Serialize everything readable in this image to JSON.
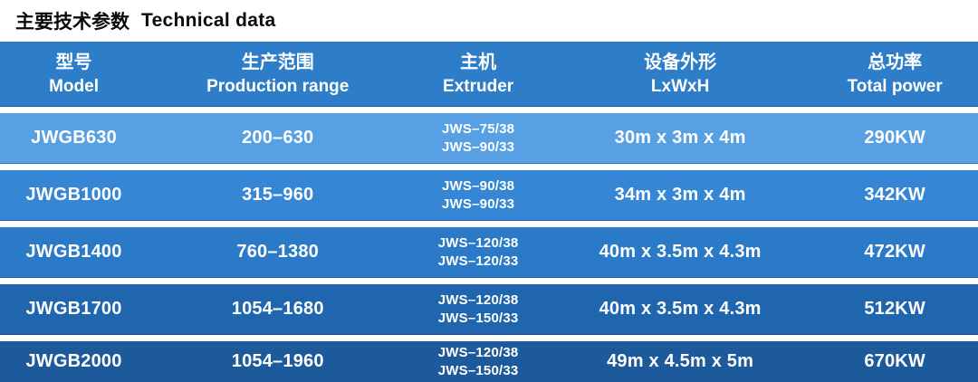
{
  "page": {
    "title_cn": "主要技术参数",
    "title_en": "Technical data"
  },
  "colors": {
    "header_bg": "#2e7dc9",
    "title_text": "#0a0a0a",
    "cell_text": "#ffffff",
    "page_bg": "#ffffff"
  },
  "table": {
    "columns": [
      {
        "cn": "型号",
        "en": "Model"
      },
      {
        "cn": "生产范围",
        "en": "Production range"
      },
      {
        "cn": "主机",
        "en": "Extruder"
      },
      {
        "cn": "设备外形",
        "en": "LxWxH"
      },
      {
        "cn": "总功率",
        "en": "Total power"
      }
    ],
    "rows": [
      {
        "model": "JWGB630",
        "production_range": "200–630",
        "extruder_line1": "JWS–75/38",
        "extruder_line2": "JWS–90/33",
        "dimensions": "30m x 3m x 4m",
        "total_power": "290KW",
        "row_color": "#57a0e3"
      },
      {
        "model": "JWGB1000",
        "production_range": "315–960",
        "extruder_line1": "JWS–90/38",
        "extruder_line2": "JWS–90/33",
        "dimensions": "34m x 3m x 4m",
        "total_power": "342KW",
        "row_color": "#3586d4"
      },
      {
        "model": "JWGB1400",
        "production_range": "760–1380",
        "extruder_line1": "JWS–120/38",
        "extruder_line2": "JWS–120/33",
        "dimensions": "40m x 3.5m x 4.3m",
        "total_power": "472KW",
        "row_color": "#2a7ac7"
      },
      {
        "model": "JWGB1700",
        "production_range": "1054–1680",
        "extruder_line1": "JWS–120/38",
        "extruder_line2": "JWS–150/33",
        "dimensions": "40m x 3.5m x 4.3m",
        "total_power": "512KW",
        "row_color": "#2066ae"
      },
      {
        "model": "JWGB2000",
        "production_range": "1054–1960",
        "extruder_line1": "JWS–120/38",
        "extruder_line2": "JWS–150/33",
        "dimensions": "49m x 4.5m x 5m",
        "total_power": "670KW",
        "row_color": "#1d5a9c"
      }
    ]
  }
}
